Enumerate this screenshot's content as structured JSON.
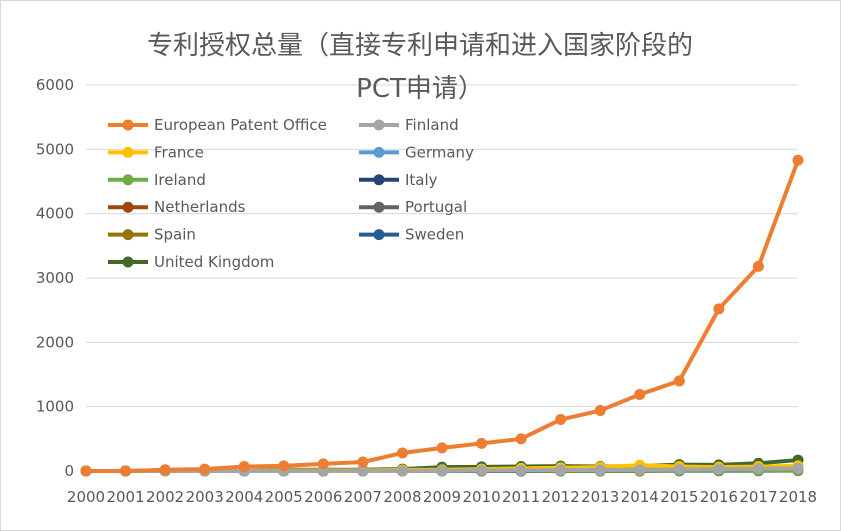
{
  "chart_data": {
    "type": "line",
    "title_lines": [
      "专利授权总量（直接专利申请和进入国家阶段的",
      "PCT申请）"
    ],
    "xlabel": "",
    "ylabel": "",
    "x": [
      "2000",
      "2001",
      "2002",
      "2003",
      "2004",
      "2005",
      "2006",
      "2007",
      "2008",
      "2009",
      "2010",
      "2011",
      "2012",
      "2013",
      "2014",
      "2015",
      "2016",
      "2017",
      "2018"
    ],
    "y_ticks": [
      "0",
      "1000",
      "2000",
      "3000",
      "4000",
      "5000",
      "6000"
    ],
    "ylim": [
      0,
      6000
    ],
    "grid": true,
    "legend_position": "top-left inside plot, two columns",
    "series": [
      {
        "name": "European Patent Office",
        "color": "#ED7D31",
        "values": [
          0,
          0,
          20,
          30,
          70,
          80,
          110,
          140,
          280,
          360,
          430,
          500,
          800,
          940,
          1190,
          1400,
          2520,
          3180,
          4830
        ]
      },
      {
        "name": "Finland",
        "color": "#A5A5A5",
        "values": [
          0,
          0,
          0,
          0,
          0,
          0,
          0,
          0,
          0,
          5,
          10,
          10,
          15,
          15,
          20,
          25,
          30,
          35,
          40
        ]
      },
      {
        "name": "France",
        "color": "#FFC000",
        "values": [
          0,
          0,
          0,
          5,
          10,
          10,
          10,
          10,
          15,
          20,
          30,
          40,
          50,
          60,
          90,
          70,
          60,
          70,
          80
        ]
      },
      {
        "name": "Germany",
        "color": "#5B9BD5",
        "values": [
          0,
          0,
          0,
          0,
          5,
          5,
          5,
          5,
          10,
          10,
          15,
          20,
          20,
          25,
          30,
          30,
          40,
          45,
          50
        ]
      },
      {
        "name": "Ireland",
        "color": "#70AD47",
        "values": [
          0,
          0,
          0,
          0,
          0,
          0,
          0,
          0,
          0,
          0,
          5,
          5,
          5,
          5,
          5,
          10,
          10,
          10,
          10
        ]
      },
      {
        "name": "Italy",
        "color": "#264478",
        "values": [
          0,
          0,
          0,
          0,
          0,
          0,
          0,
          0,
          0,
          0,
          0,
          0,
          5,
          5,
          5,
          5,
          5,
          5,
          10
        ]
      },
      {
        "name": "Netherlands",
        "color": "#9E480E",
        "values": [
          0,
          0,
          0,
          0,
          0,
          0,
          0,
          0,
          5,
          5,
          5,
          5,
          10,
          10,
          10,
          15,
          15,
          20,
          20
        ]
      },
      {
        "name": "Portugal",
        "color": "#636363",
        "values": [
          0,
          0,
          0,
          0,
          0,
          0,
          0,
          0,
          0,
          0,
          0,
          0,
          0,
          0,
          0,
          5,
          5,
          5,
          5
        ]
      },
      {
        "name": "Spain",
        "color": "#997300",
        "values": [
          0,
          0,
          0,
          0,
          5,
          5,
          5,
          5,
          5,
          5,
          10,
          10,
          10,
          10,
          15,
          15,
          20,
          20,
          25
        ]
      },
      {
        "name": "Sweden",
        "color": "#255E91",
        "values": [
          0,
          0,
          0,
          0,
          0,
          0,
          0,
          0,
          0,
          5,
          5,
          5,
          5,
          5,
          10,
          10,
          10,
          10,
          15
        ]
      },
      {
        "name": "United Kingdom",
        "color": "#43682B",
        "values": [
          0,
          0,
          10,
          20,
          30,
          20,
          20,
          20,
          30,
          60,
          65,
          70,
          75,
          70,
          75,
          100,
          95,
          120,
          170
        ]
      }
    ]
  }
}
